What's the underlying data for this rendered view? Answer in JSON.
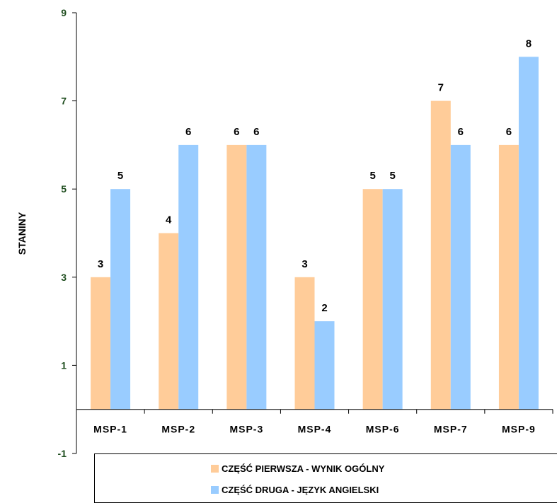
{
  "chart_data": {
    "type": "bar",
    "ylabel": "STANINY",
    "ylim": [
      -1,
      9
    ],
    "yticks": [
      -1,
      1,
      3,
      5,
      7,
      9
    ],
    "categories": [
      "MSP-1",
      "MSP-2",
      "MSP-3",
      "MSP-4",
      "MSP-6",
      "MSP-7",
      "MSP-9"
    ],
    "series": [
      {
        "name": "CZĘŚĆ PIERWSZA - WYNIK OGÓLNY",
        "color": "#FFCC99",
        "values": [
          3,
          4,
          6,
          3,
          5,
          7,
          6
        ]
      },
      {
        "name": "CZĘŚĆ DRUGA - JĘZYK ANGIELSKI",
        "color": "#99CCFF",
        "values": [
          5,
          6,
          6,
          2,
          5,
          6,
          8
        ]
      }
    ],
    "legend_position": "bottom",
    "grid": false
  }
}
